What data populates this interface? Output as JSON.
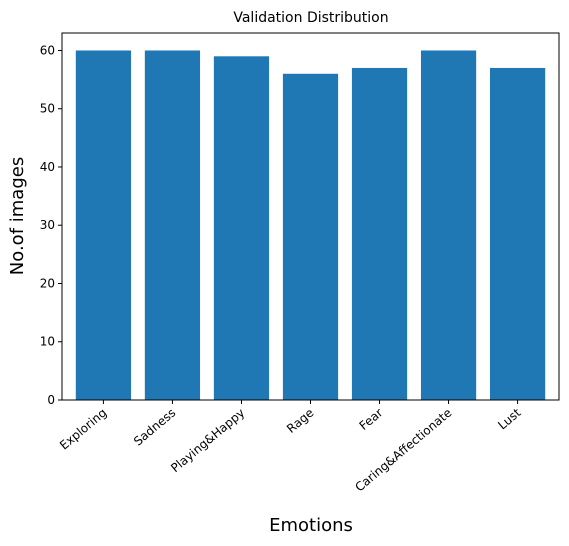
{
  "chart_data": {
    "type": "bar",
    "title": "Validation Distribution",
    "xlabel": "Emotions",
    "ylabel": "No.of images",
    "categories": [
      "Exploring",
      "Sadness",
      "Playing&Happy",
      "Rage",
      "Fear",
      "Caring&Affectionate",
      "Lust"
    ],
    "values": [
      60,
      60,
      59,
      56,
      57,
      60,
      57
    ],
    "ylim": [
      0,
      63
    ],
    "yticks": [
      0,
      10,
      20,
      30,
      40,
      50,
      60
    ],
    "bar_color": "#1f77b4",
    "grid": false,
    "legend": "none"
  }
}
